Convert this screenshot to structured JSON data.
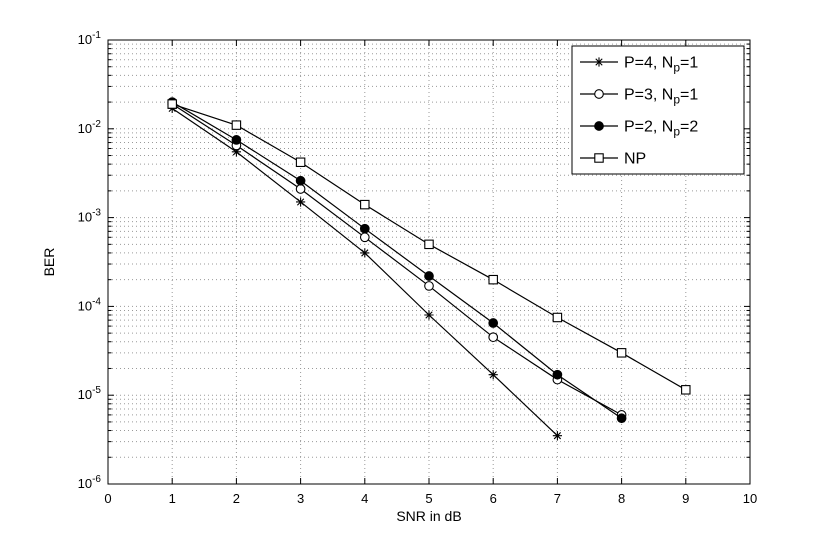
{
  "chart_data": {
    "type": "line",
    "title": "",
    "xlabel": "SNR in dB",
    "ylabel": "BER",
    "xlim": [
      0,
      10
    ],
    "y_log_range": [
      -6,
      -1
    ],
    "x_ticks": [
      0,
      1,
      2,
      3,
      4,
      5,
      6,
      7,
      8,
      9,
      10
    ],
    "y_tick_exponents": [
      -1,
      -2,
      -3,
      -4,
      -5,
      -6
    ],
    "grid": "dotted major x, dotted major+minor log y",
    "legend_position": "top-right",
    "axis_color": "#000000",
    "grid_color": "#9a9a9a",
    "line_color": "#000000",
    "series": [
      {
        "name": "P=4, Np=1",
        "label_parts": {
          "pre": "P=4, N",
          "sub": "p",
          "post": "=1"
        },
        "marker": "asterisk",
        "x": [
          1,
          2,
          3,
          4,
          5,
          6,
          7
        ],
        "y": [
          0.017,
          0.0055,
          0.0015,
          0.0004,
          8e-05,
          1.7e-05,
          3.5e-06
        ]
      },
      {
        "name": "P=3, Np=1",
        "label_parts": {
          "pre": "P=3, N",
          "sub": "p",
          "post": "=1"
        },
        "marker": "circle-open",
        "x": [
          1,
          2,
          3,
          4,
          5,
          6,
          7,
          8
        ],
        "y": [
          0.019,
          0.0065,
          0.0021,
          0.0006,
          0.00017,
          4.5e-05,
          1.5e-05,
          6e-06
        ]
      },
      {
        "name": "P=2, Np=2",
        "label_parts": {
          "pre": "P=2, N",
          "sub": "p",
          "post": "=2"
        },
        "marker": "circle-filled",
        "x": [
          1,
          2,
          3,
          4,
          5,
          6,
          7,
          8
        ],
        "y": [
          0.02,
          0.0075,
          0.0026,
          0.00075,
          0.00022,
          6.5e-05,
          1.7e-05,
          5.5e-06
        ]
      },
      {
        "name": "NP",
        "label_parts": {
          "pre": "NP",
          "sub": "",
          "post": ""
        },
        "marker": "square-open",
        "x": [
          1,
          2,
          3,
          4,
          5,
          6,
          7,
          8,
          9
        ],
        "y": [
          0.019,
          0.011,
          0.0042,
          0.0014,
          0.0005,
          0.0002,
          7.5e-05,
          3e-05,
          1.15e-05
        ]
      }
    ]
  }
}
